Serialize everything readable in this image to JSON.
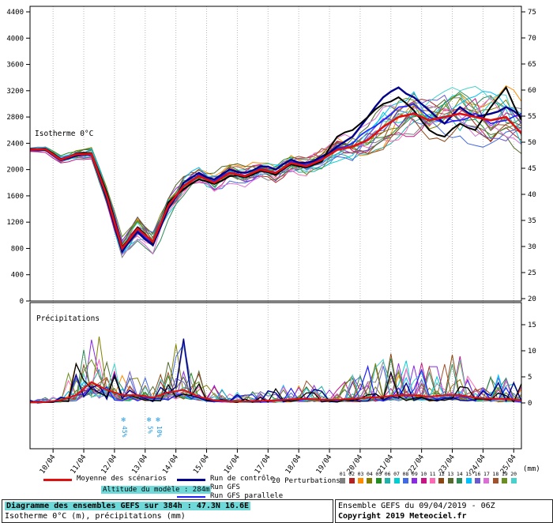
{
  "colors": {
    "highlight": "#6fd8d8",
    "snow": "#2299dd",
    "grid": "#b8b8b8",
    "axis": "#000000"
  },
  "chart_data": {
    "type": "line",
    "title": "Diagramme des ensembles GEFS sur 384h : 47.3N 16.6E",
    "ylabel_left": "Isotherme 0°C (m)",
    "ylabel_right": "précipitations (mm)",
    "panel_labels": {
      "top": "Isotherme 0°C",
      "bottom": "Précipitations"
    },
    "x_dates": [
      "10/04",
      "11/04",
      "12/04",
      "13/04",
      "14/04",
      "15/04",
      "16/04",
      "17/04",
      "18/04",
      "19/04",
      "20/04",
      "21/04",
      "22/04",
      "23/04",
      "24/04",
      "25/04"
    ],
    "hours_total": 384,
    "date0_offset_hours": 18,
    "step_hours": 12,
    "left_axis": {
      "ticks": [
        0,
        400,
        800,
        1200,
        1600,
        2000,
        2400,
        2800,
        3200,
        3600,
        4000,
        4400
      ]
    },
    "right_axis": {
      "ticks": [
        0,
        5,
        10,
        15,
        20,
        25,
        30,
        35,
        40,
        45,
        50,
        55,
        60,
        65,
        70,
        75
      ],
      "unit": "(mm)"
    },
    "series": {
      "mean": {
        "name": "Moyenne des scénarios",
        "color": "#e01010",
        "width": 2.6,
        "alt": [
          2300,
          2310,
          2150,
          2230,
          2240,
          1600,
          800,
          1100,
          900,
          1450,
          1750,
          1900,
          1800,
          1950,
          1900,
          2000,
          1950,
          2100,
          2050,
          2150,
          2300,
          2350,
          2450,
          2650,
          2800,
          2850,
          2750,
          2800,
          2850,
          2800,
          2750,
          2800,
          2550
        ],
        "precip": [
          0.1,
          0.2,
          0.5,
          1.5,
          4.0,
          2.5,
          1.5,
          1.5,
          1.0,
          2.0,
          2.5,
          1.2,
          0.5,
          0.3,
          0.3,
          0.4,
          0.5,
          0.7,
          0.8,
          0.6,
          0.6,
          0.8,
          1.0,
          1.2,
          1.5,
          1.5,
          1.2,
          1.5,
          1.5,
          1.0,
          0.8,
          0.8,
          0.5
        ]
      },
      "control": {
        "name": "Run de contrôle",
        "color": "#00008b",
        "width": 2.4,
        "alt": [
          2300,
          2300,
          2140,
          2210,
          2230,
          1550,
          750,
          1050,
          850,
          1400,
          1800,
          1950,
          1850,
          2000,
          1950,
          2050,
          2000,
          2150,
          2100,
          2200,
          2350,
          2500,
          2800,
          3100,
          3250,
          3100,
          2900,
          2700,
          2950,
          2800,
          2850,
          2950,
          2800
        ]
      },
      "gfs": {
        "name": "Run GFS",
        "color": "#000000",
        "width": 2.0,
        "alt": [
          2310,
          2320,
          2160,
          2240,
          2250,
          1650,
          820,
          1120,
          880,
          1500,
          1700,
          1850,
          1780,
          1900,
          1880,
          1980,
          1920,
          2080,
          2030,
          2120,
          2500,
          2600,
          2800,
          3000,
          3100,
          2900,
          2600,
          2500,
          2700,
          2600,
          2950,
          3250,
          2750
        ]
      },
      "gfs_par": {
        "name": "Run GFS parallele",
        "color": "#2020ff",
        "width": 1.6,
        "alt": [
          2290,
          2300,
          2150,
          2220,
          2235,
          1580,
          780,
          1080,
          870,
          1430,
          1760,
          1920,
          1820,
          1960,
          1910,
          2020,
          1960,
          2120,
          2070,
          2170,
          2320,
          2400,
          2600,
          2750,
          2950,
          3000,
          2800,
          2700,
          2750,
          2850,
          2700,
          2750,
          2850
        ]
      }
    },
    "perturbations": {
      "count": 20,
      "labels": [
        "01",
        "02",
        "03",
        "04",
        "05",
        "06",
        "07",
        "08",
        "09",
        "10",
        "11",
        "12",
        "13",
        "14",
        "15",
        "16",
        "17",
        "18",
        "19",
        "20"
      ],
      "colors": [
        "#808080",
        "#b22222",
        "#ff8c00",
        "#808000",
        "#228b22",
        "#20b2aa",
        "#00ced1",
        "#4169e1",
        "#8a2be2",
        "#c71585",
        "#ff69b4",
        "#8b4513",
        "#556b2f",
        "#2e8b57",
        "#00bfff",
        "#6a5acd",
        "#da70d6",
        "#a0522d",
        "#6b8e23",
        "#48d1cc"
      ],
      "spread_alt": [
        60,
        80,
        100,
        120,
        150,
        250,
        300,
        350,
        300,
        300,
        250,
        220,
        220,
        220,
        230,
        240,
        250,
        260,
        270,
        280,
        320,
        380,
        450,
        520,
        560,
        600,
        640,
        660,
        680,
        700,
        720,
        740,
        760
      ],
      "precip_activity": [
        0.5,
        1,
        2,
        8,
        18,
        8,
        6,
        5,
        4,
        9,
        12,
        6,
        3,
        2,
        2,
        2.5,
        3,
        4,
        4,
        3,
        4,
        5,
        7,
        8,
        9,
        8,
        7,
        8,
        9,
        6,
        5,
        5,
        4
      ]
    },
    "annotations": [
      {
        "hour": 73,
        "symbol": "❄",
        "text": "45%"
      },
      {
        "hour": 93,
        "symbol": "❄",
        "text": "5%"
      },
      {
        "hour": 100,
        "symbol": "❄",
        "text": "10%"
      }
    ]
  },
  "legend": {
    "mean_label": "Moyenne des scénarios",
    "control_label": "Run de contrôle",
    "gfs_label": "Run GFS",
    "gfs_par_label": "Run GFS parallele",
    "perturbations_label": "20 Perturbations",
    "altitude_note": "Altitude du modèle : 284m"
  },
  "footer": {
    "left_line1": "Diagramme des ensembles GEFS sur 384h : 47.3N 16.6E",
    "left_line2": "Isotherme 0°C (m), précipitations (mm)",
    "right_line1": "Ensemble GEFS du 09/04/2019 - 06Z",
    "right_line2": "Copyright 2019 Meteociel.fr"
  }
}
